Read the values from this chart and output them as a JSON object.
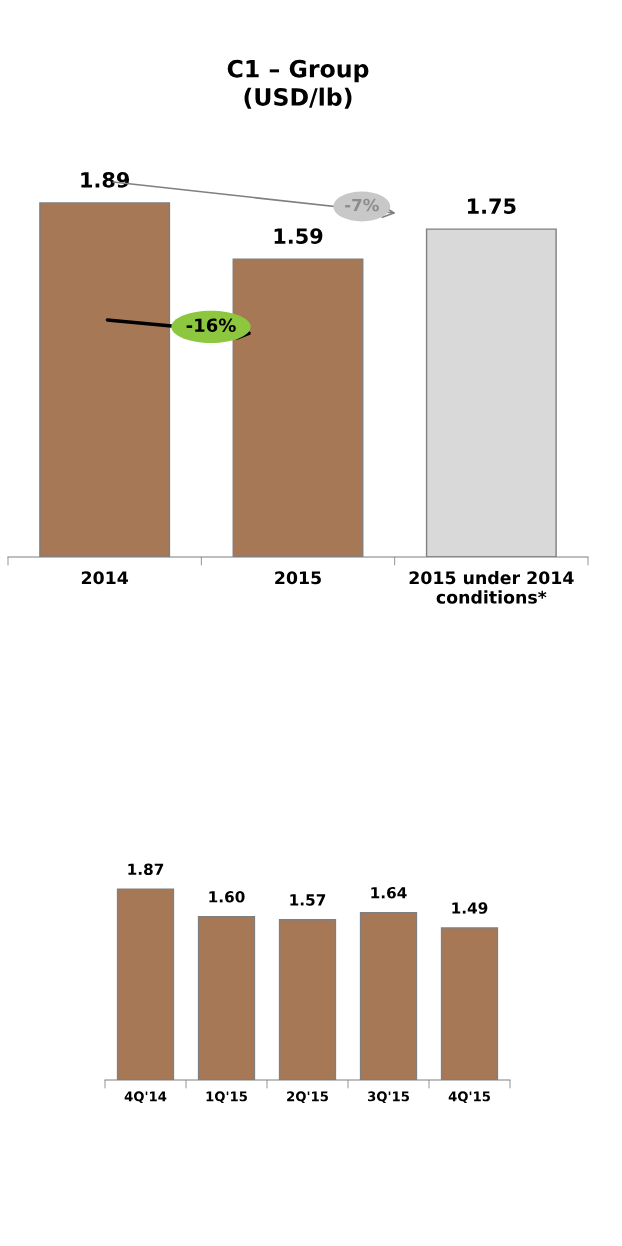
{
  "chart_data": [
    {
      "type": "bar",
      "title": "C1 – Group\n(USD/lb)",
      "categories": [
        "2014",
        "2015",
        "2015 under 2014\nconditions*"
      ],
      "values": [
        1.89,
        1.59,
        1.75
      ],
      "colors": [
        "#a67856",
        "#a67856",
        "#d9d9d9"
      ],
      "data_labels": true,
      "annotations": [
        "-16%",
        "-7%"
      ]
    },
    {
      "type": "bar",
      "categories": [
        "4Q'14",
        "1Q'15",
        "2Q'15",
        "3Q'15",
        "4Q'15"
      ],
      "values": [
        1.87,
        1.6,
        1.57,
        1.64,
        1.49
      ],
      "value_labels": [
        "1.87",
        "1.60",
        "1.57",
        "1.64",
        "1.49"
      ],
      "colors": [
        "#a67856",
        "#a67856",
        "#a67856",
        "#a67856",
        "#a67856"
      ]
    }
  ]
}
